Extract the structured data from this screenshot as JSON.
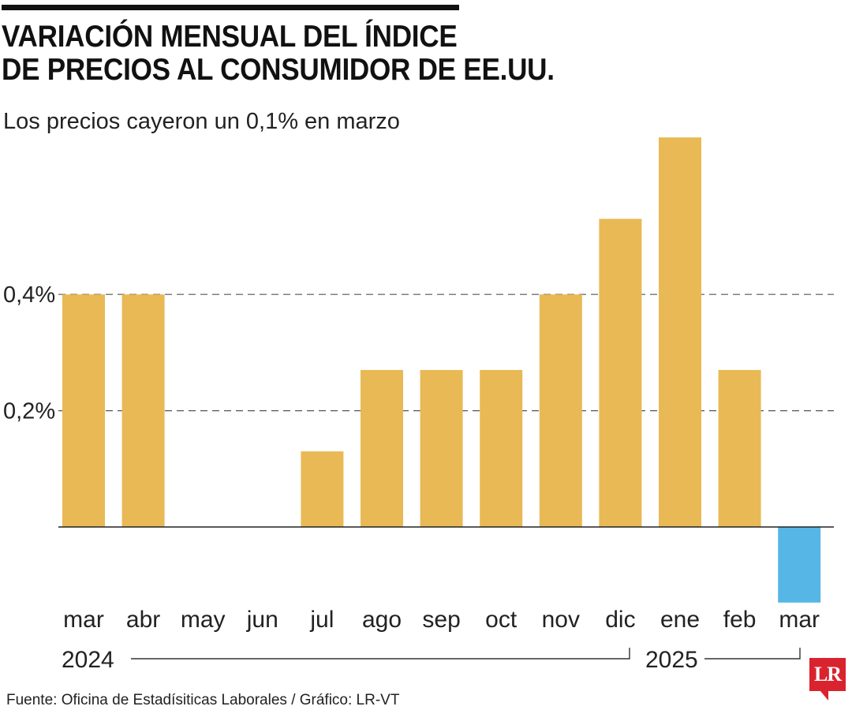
{
  "header": {
    "title_line1": "VARIACIÓN MENSUAL DEL ÍNDICE",
    "title_line2": "DE PRECIOS AL CONSUMIDOR DE EE.UU.",
    "subtitle": "Los precios cayeron un 0,1% en marzo"
  },
  "chart_data": {
    "type": "bar",
    "title": "VARIACIÓN MENSUAL DEL ÍNDICE DE PRECIOS AL CONSUMIDOR DE EE.UU.",
    "subtitle": "Los precios cayeron un 0,1% en marzo",
    "categories": [
      "mar",
      "abr",
      "may",
      "jun",
      "jul",
      "ago",
      "sep",
      "oct",
      "nov",
      "dic",
      "ene",
      "feb",
      "mar"
    ],
    "values": [
      0.4,
      0.4,
      0.0,
      0.0,
      0.13,
      0.27,
      0.27,
      0.27,
      0.4,
      0.53,
      0.67,
      0.27,
      -0.13
    ],
    "y_ticks": [
      0.2,
      0.4
    ],
    "y_tick_labels": [
      "0,2%",
      "0,4%"
    ],
    "ylim": [
      -0.15,
      0.7
    ],
    "grid": "dashed horizontal",
    "year_groups": [
      {
        "label": "2024",
        "from": 0,
        "to": 9
      },
      {
        "label": "2025",
        "from": 10,
        "to": 12
      }
    ],
    "colors": {
      "positive": "#e8b955",
      "negative": "#56b7e6",
      "grid": "#555555",
      "axis": "#222222"
    }
  },
  "footer": {
    "source": "Fuente: Oficina de Estadísiticas Laborales / Gráfico: LR-VT",
    "logo_text": "LR"
  }
}
